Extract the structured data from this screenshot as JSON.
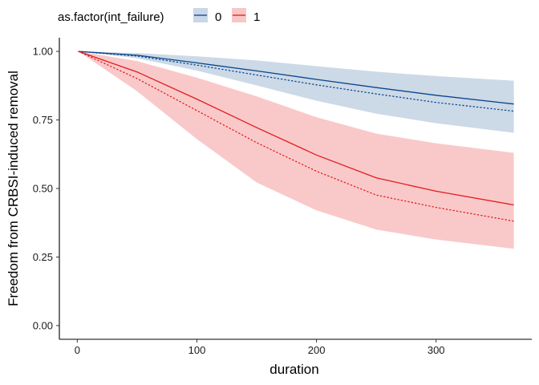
{
  "chart_data": {
    "type": "line",
    "title": "",
    "xlabel": "duration",
    "ylabel": "Freedom from CRBSI-induced removal",
    "xlim": [
      -15,
      380
    ],
    "ylim": [
      -0.05,
      1.05
    ],
    "x_ticks": [
      0,
      100,
      200,
      300
    ],
    "y_ticks": [
      0.0,
      0.25,
      0.5,
      0.75,
      1.0
    ],
    "x_tick_labels": [
      "0",
      "100",
      "200",
      "300"
    ],
    "y_tick_labels": [
      "0.00",
      "0.25",
      "0.50",
      "0.75",
      "1.00"
    ],
    "grid": false,
    "legend": {
      "title": "as.factor(int_failure)",
      "position": "top-left",
      "entries": [
        {
          "label": "0",
          "color": "#08468c",
          "fill": "#c9d7e6"
        },
        {
          "label": "1",
          "color": "#e41a1c",
          "fill": "#f9c6c6"
        }
      ]
    },
    "x": [
      1,
      50,
      100,
      150,
      200,
      250,
      300,
      365
    ],
    "series": [
      {
        "name": "0",
        "color": "#08468c",
        "fill": "#c9d7e6",
        "estimate": [
          1.0,
          0.986,
          0.958,
          0.929,
          0.898,
          0.868,
          0.84,
          0.808
        ],
        "dotted": [
          1.0,
          0.983,
          0.95,
          0.914,
          0.878,
          0.845,
          0.814,
          0.782
        ],
        "lower": [
          1.0,
          0.975,
          0.93,
          0.876,
          0.82,
          0.773,
          0.738,
          0.703
        ],
        "upper": [
          1.0,
          0.994,
          0.982,
          0.967,
          0.946,
          0.926,
          0.91,
          0.893
        ]
      },
      {
        "name": "1",
        "color": "#e41a1c",
        "fill": "#f9c6c6",
        "estimate": [
          1.0,
          0.925,
          0.826,
          0.722,
          0.622,
          0.539,
          0.49,
          0.44
        ],
        "dotted": [
          1.0,
          0.901,
          0.784,
          0.667,
          0.563,
          0.476,
          0.431,
          0.381
        ],
        "lower": [
          1.0,
          0.855,
          0.68,
          0.522,
          0.42,
          0.35,
          0.314,
          0.28
        ],
        "upper": [
          1.0,
          0.965,
          0.904,
          0.836,
          0.76,
          0.7,
          0.665,
          0.63
        ]
      }
    ]
  }
}
